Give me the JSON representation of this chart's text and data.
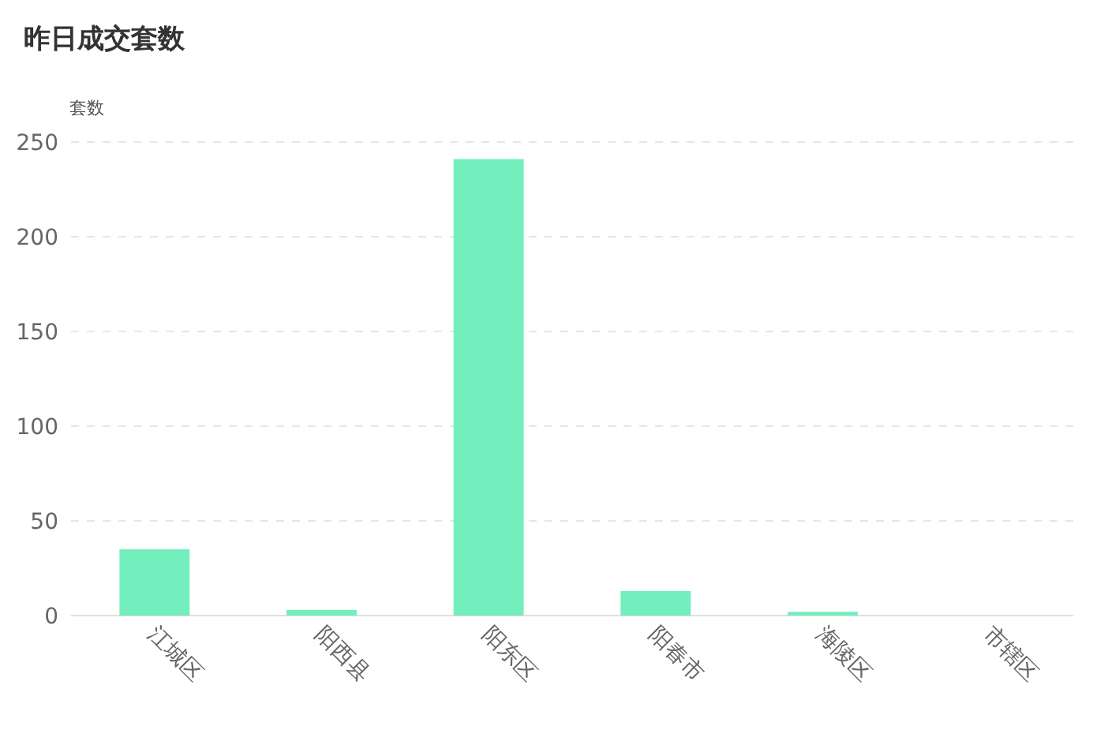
{
  "chart_data": {
    "type": "bar",
    "title": "昨日成交套数",
    "ylabel": "套数",
    "categories": [
      "江城区",
      "阳西县",
      "阳东区",
      "阳春市",
      "海陵区",
      "市辖区"
    ],
    "values": [
      35,
      3,
      241,
      13,
      2,
      0
    ],
    "color": "#73eebd",
    "ylim": [
      0,
      250
    ],
    "yticks": [
      0,
      50,
      100,
      150,
      200,
      250
    ],
    "grid": "y"
  }
}
